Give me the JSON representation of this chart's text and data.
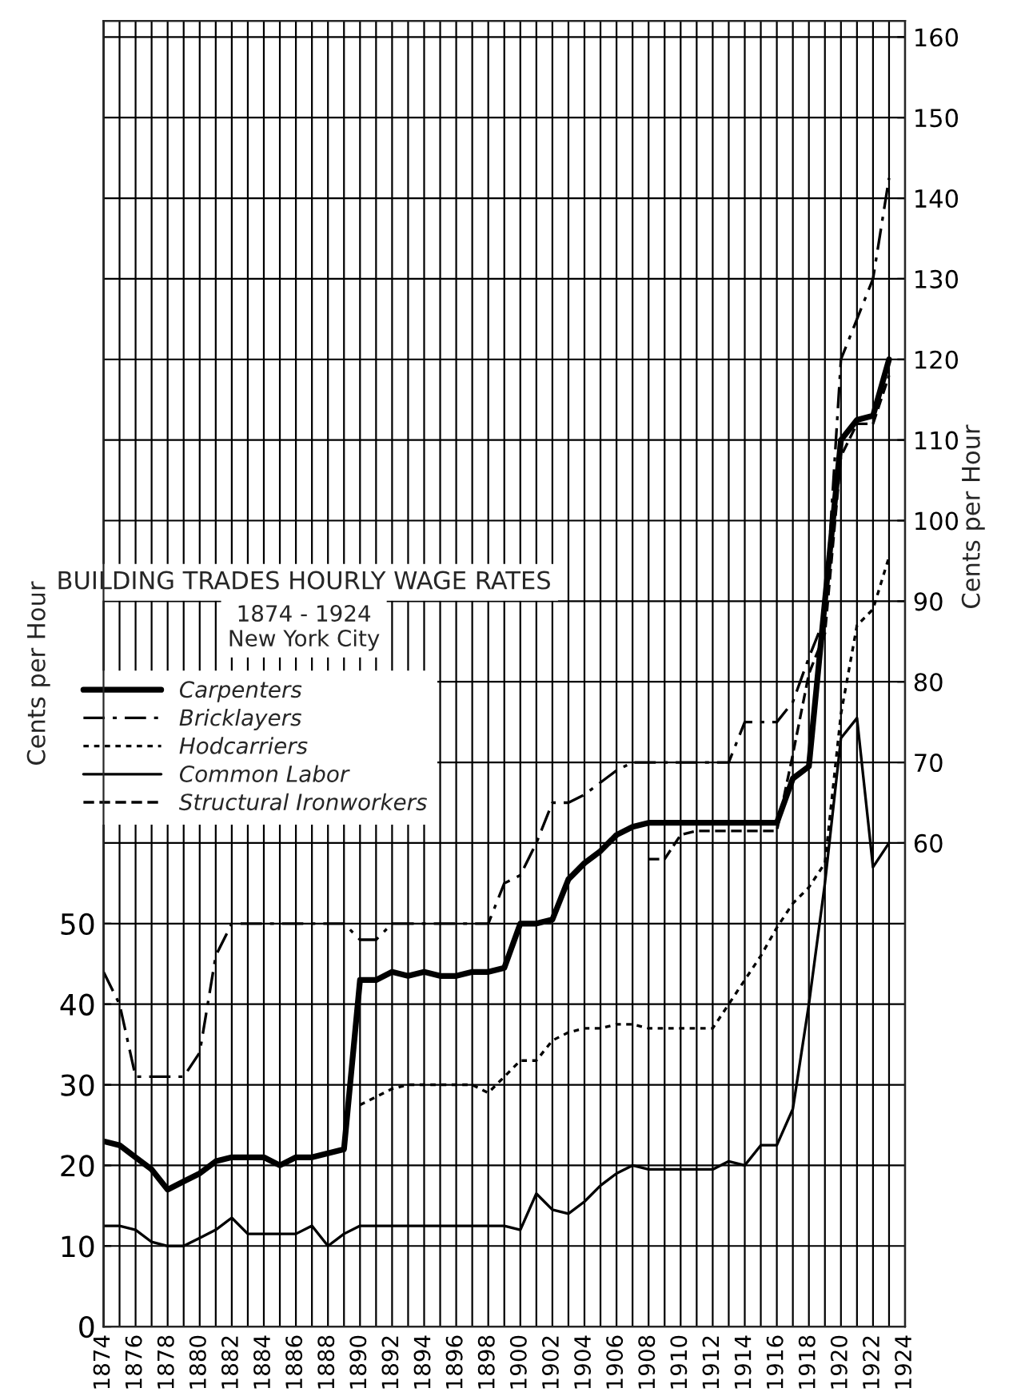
{
  "chart_data": {
    "type": "line",
    "title": "BUILDING TRADES HOURLY WAGE RATES",
    "subtitle": "1874 - 1924\nNew York City",
    "ylabel": "Cents per Hour",
    "y2label": "Cents per Hour",
    "xlim": [
      1874,
      1924
    ],
    "xticks": [
      1874,
      {
        "value": 1875,
        "label": null
      },
      1876,
      {
        "value": 1877,
        "label": null
      },
      1878,
      {
        "value": 1879,
        "label": null
      },
      1880,
      {
        "value": 1881,
        "label": null
      },
      1882,
      {
        "value": 1883,
        "label": null
      },
      1884,
      {
        "value": 1885,
        "label": null
      },
      1886,
      {
        "value": 1887,
        "label": null
      },
      1888,
      {
        "value": 1889,
        "label": null
      },
      1890,
      {
        "value": 1891,
        "label": null
      },
      1892,
      {
        "value": 1893,
        "label": null
      },
      1894,
      {
        "value": 1895,
        "label": null
      },
      1896,
      {
        "value": 1897,
        "label": null
      },
      1898,
      {
        "value": 1899,
        "label": null
      },
      1900,
      {
        "value": 1901,
        "label": null
      },
      1902,
      {
        "value": 1903,
        "label": null
      },
      1904,
      {
        "value": 1905,
        "label": null
      },
      1906,
      {
        "value": 1907,
        "label": null
      },
      1908,
      {
        "value": 1909,
        "label": null
      },
      1910,
      {
        "value": 1911,
        "label": null
      },
      1912,
      {
        "value": 1913,
        "label": null
      },
      1914,
      {
        "value": 1915,
        "label": null
      },
      1916,
      {
        "value": 1917,
        "label": null
      },
      1918,
      {
        "value": 1919,
        "label": null
      },
      1920,
      {
        "value": 1921,
        "label": null
      },
      1922,
      {
        "value": 1923,
        "label": null
      },
      1924
    ],
    "ylim": [
      0,
      162
    ],
    "yticks": [
      0,
      10,
      20,
      30,
      40,
      50
    ],
    "y2lim": [
      0,
      162
    ],
    "y2ticks": [
      60,
      70,
      80,
      90,
      100,
      110,
      120,
      130,
      140,
      150,
      160
    ],
    "grid": true,
    "legend": "left",
    "marker": "none",
    "series": [
      {
        "name": "Carpenters",
        "color": "#000000",
        "line_style": "solid",
        "x": [
          1874,
          1875,
          1876,
          1877,
          1878,
          1879,
          1880,
          1881,
          1882,
          1883,
          1884,
          1885,
          1886,
          1887,
          1888,
          1889,
          1890,
          1891,
          1892,
          1893,
          1894,
          1895,
          1896,
          1897,
          1898,
          1899,
          1900,
          1901,
          1902,
          1903,
          1904,
          1905,
          1906,
          1907,
          1908,
          1909,
          1910,
          1911,
          1912,
          1913,
          1914,
          1915,
          1916,
          1917,
          1918,
          1919,
          1920,
          1921,
          1922,
          1923
        ],
        "values": [
          23,
          22.5,
          21,
          19.5,
          17,
          18,
          19,
          20.5,
          21,
          21,
          21,
          20,
          21,
          21,
          21.5,
          22,
          43,
          43,
          44,
          43.5,
          44,
          43.5,
          43.5,
          44,
          44,
          44.5,
          50,
          50,
          50.5,
          55.5,
          57.5,
          59,
          61,
          62,
          62.5,
          62.5,
          62.5,
          62.5,
          62.5,
          62.5,
          62.5,
          62.5,
          62.5,
          68,
          69.5,
          90,
          110,
          112.5,
          113,
          120
        ]
      },
      {
        "name": "Bricklayers",
        "color": "#000000",
        "line_style": "dashdot",
        "x": [
          1874,
          1875,
          1876,
          1877,
          1878,
          1879,
          1880,
          1881,
          1882,
          1883,
          1884,
          1885,
          1886,
          1887,
          1888,
          1889,
          1890,
          1891,
          1892,
          1893,
          1894,
          1895,
          1896,
          1897,
          1898,
          1899,
          1900,
          1901,
          1902,
          1903,
          1904,
          1905,
          1906,
          1907,
          1908,
          1909,
          1910,
          1911,
          1912,
          1913,
          1914,
          1915,
          1916,
          1917,
          1918,
          1919,
          1920,
          1921,
          1922,
          1923
        ],
        "values": [
          44,
          40,
          31,
          31,
          31,
          31,
          34,
          46,
          50,
          50,
          50,
          50,
          50,
          50,
          50,
          50,
          48,
          48,
          50,
          50,
          50,
          50,
          50,
          50,
          50,
          55,
          56,
          60,
          65,
          65,
          66,
          67.5,
          69,
          70,
          70,
          70,
          70,
          70,
          70,
          70,
          75,
          75,
          75,
          77.5,
          83,
          88,
          120,
          125,
          130,
          142.5
        ]
      },
      {
        "name": "Hodcarriers",
        "color": "#000000",
        "line_style": "dotted",
        "x": [
          1890,
          1891,
          1892,
          1893,
          1894,
          1895,
          1896,
          1897,
          1898,
          1899,
          1900,
          1901,
          1902,
          1903,
          1904,
          1905,
          1906,
          1907,
          1908,
          1909,
          1910,
          1911,
          1912,
          1913,
          1914,
          1915,
          1916,
          1917,
          1918,
          1919,
          1920,
          1921,
          1922,
          1923
        ],
        "values": [
          27.5,
          28.5,
          29.5,
          30,
          30,
          30,
          30,
          30,
          29,
          31,
          33,
          33,
          35.5,
          36.5,
          37,
          37,
          37.5,
          37.5,
          37,
          37,
          37,
          37,
          37,
          40,
          43,
          46,
          49.5,
          52.5,
          54.5,
          57.5,
          76,
          87,
          89,
          95.5
        ]
      },
      {
        "name": "Common Labor",
        "color": "#000000",
        "line_style": "solid",
        "x": [
          1874,
          1875,
          1876,
          1877,
          1878,
          1879,
          1880,
          1881,
          1882,
          1883,
          1884,
          1885,
          1886,
          1887,
          1888,
          1889,
          1890,
          1891,
          1892,
          1893,
          1894,
          1895,
          1896,
          1897,
          1898,
          1899,
          1900,
          1901,
          1902,
          1903,
          1904,
          1905,
          1906,
          1907,
          1908,
          1909,
          1910,
          1911,
          1912,
          1913,
          1914,
          1915,
          1916,
          1917,
          1918,
          1919,
          1920,
          1921,
          1922,
          1923
        ],
        "values": [
          12.5,
          12.5,
          12,
          10.5,
          10,
          10,
          11,
          12,
          13.5,
          11.5,
          11.5,
          11.5,
          11.5,
          12.5,
          10,
          11.5,
          12.5,
          12.5,
          12.5,
          12.5,
          12.5,
          12.5,
          12.5,
          12.5,
          12.5,
          12.5,
          12,
          16.5,
          14.5,
          14,
          15.5,
          17.5,
          19,
          20,
          19.5,
          19.5,
          19.5,
          19.5,
          19.5,
          20.5,
          20,
          22.5,
          22.5,
          27,
          40,
          55,
          73,
          75.5,
          57,
          60
        ]
      },
      {
        "name": "Structural Ironworkers",
        "color": "#000000",
        "line_style": "dashed",
        "x": [
          1908,
          1909,
          1910,
          1911,
          1912,
          1913,
          1914,
          1915,
          1916,
          1917,
          1918,
          1919,
          1920,
          1921,
          1922,
          1923
        ],
        "values": [
          58,
          58,
          61,
          61.5,
          61.5,
          61.5,
          61.5,
          61.5,
          61.5,
          71,
          81,
          86,
          108,
          112,
          112,
          118
        ]
      }
    ]
  }
}
